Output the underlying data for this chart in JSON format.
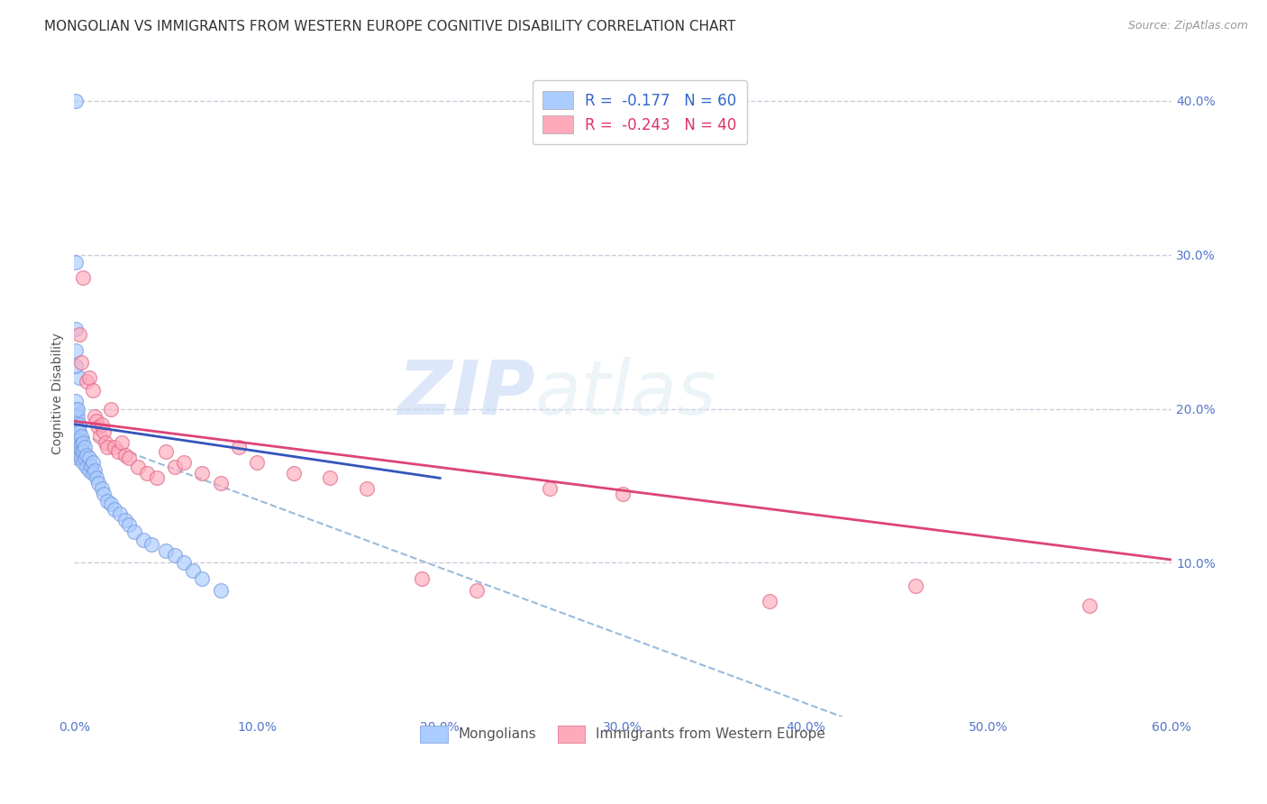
{
  "title": "MONGOLIAN VS IMMIGRANTS FROM WESTERN EUROPE COGNITIVE DISABILITY CORRELATION CHART",
  "source": "Source: ZipAtlas.com",
  "ylabel": "Cognitive Disability",
  "xlim": [
    0.0,
    0.6
  ],
  "ylim": [
    0.0,
    0.42
  ],
  "x_ticks": [
    0.0,
    0.1,
    0.2,
    0.3,
    0.4,
    0.5,
    0.6
  ],
  "x_tick_labels": [
    "0.0%",
    "10.0%",
    "20.0%",
    "30.0%",
    "40.0%",
    "50.0%",
    "60.0%"
  ],
  "y_ticks": [
    0.1,
    0.2,
    0.3,
    0.4
  ],
  "y_tick_labels": [
    "10.0%",
    "20.0%",
    "30.0%",
    "40.0%"
  ],
  "watermark": "ZIPatlas",
  "legend_top": [
    {
      "label": "R =  -0.177   N = 60",
      "color": "#aaccff"
    },
    {
      "label": "R =  -0.243   N = 40",
      "color": "#ffaabb"
    }
  ],
  "legend_top_text_colors": [
    "#3366cc",
    "#dd3366"
  ],
  "mongolian_color": "#aaccff",
  "mongolian_edge_color": "#7799dd",
  "western_europe_color": "#ffaabb",
  "western_europe_edge_color": "#dd6688",
  "mongolian_line_color": "#3355bb",
  "western_europe_line_color": "#dd4477",
  "dashed_line_color": "#99bbdd",
  "mongolian_x": [
    0.001,
    0.001,
    0.001,
    0.001,
    0.001,
    0.001,
    0.001,
    0.001,
    0.002,
    0.002,
    0.002,
    0.002,
    0.002,
    0.002,
    0.003,
    0.003,
    0.003,
    0.003,
    0.003,
    0.004,
    0.004,
    0.004,
    0.004,
    0.005,
    0.005,
    0.005,
    0.006,
    0.006,
    0.007,
    0.007,
    0.008,
    0.008,
    0.009,
    0.01,
    0.01,
    0.011,
    0.012,
    0.013,
    0.015,
    0.016,
    0.018,
    0.02,
    0.022,
    0.025,
    0.028,
    0.03,
    0.033,
    0.038,
    0.042,
    0.05,
    0.055,
    0.06,
    0.065,
    0.07,
    0.08,
    0.001,
    0.001,
    0.001,
    0.001,
    0.001
  ],
  "mongolian_y": [
    0.195,
    0.2,
    0.205,
    0.19,
    0.185,
    0.18,
    0.175,
    0.17,
    0.195,
    0.2,
    0.185,
    0.178,
    0.172,
    0.168,
    0.19,
    0.185,
    0.18,
    0.175,
    0.22,
    0.182,
    0.177,
    0.172,
    0.168,
    0.178,
    0.172,
    0.165,
    0.175,
    0.168,
    0.17,
    0.162,
    0.168,
    0.16,
    0.163,
    0.165,
    0.158,
    0.16,
    0.155,
    0.152,
    0.148,
    0.145,
    0.14,
    0.138,
    0.135,
    0.132,
    0.128,
    0.125,
    0.12,
    0.115,
    0.112,
    0.108,
    0.105,
    0.1,
    0.095,
    0.09,
    0.082,
    0.295,
    0.252,
    0.238,
    0.228,
    0.4
  ],
  "western_europe_x": [
    0.003,
    0.004,
    0.005,
    0.007,
    0.008,
    0.01,
    0.011,
    0.012,
    0.013,
    0.014,
    0.015,
    0.016,
    0.017,
    0.018,
    0.02,
    0.022,
    0.024,
    0.026,
    0.028,
    0.03,
    0.035,
    0.04,
    0.045,
    0.05,
    0.055,
    0.06,
    0.07,
    0.08,
    0.09,
    0.1,
    0.12,
    0.14,
    0.16,
    0.19,
    0.22,
    0.26,
    0.3,
    0.38,
    0.46,
    0.555
  ],
  "western_europe_y": [
    0.248,
    0.23,
    0.285,
    0.218,
    0.22,
    0.212,
    0.195,
    0.192,
    0.188,
    0.182,
    0.19,
    0.185,
    0.178,
    0.175,
    0.2,
    0.175,
    0.172,
    0.178,
    0.17,
    0.168,
    0.162,
    0.158,
    0.155,
    0.172,
    0.162,
    0.165,
    0.158,
    0.152,
    0.175,
    0.165,
    0.158,
    0.155,
    0.148,
    0.09,
    0.082,
    0.148,
    0.145,
    0.075,
    0.085,
    0.072
  ],
  "mon_line_x": [
    0.0,
    0.2
  ],
  "mon_line_y": [
    0.19,
    0.155
  ],
  "weu_line_x": [
    0.0,
    0.6
  ],
  "weu_line_y": [
    0.192,
    0.102
  ],
  "dash_line_x": [
    0.0,
    0.42
  ],
  "dash_line_y": [
    0.185,
    0.0
  ],
  "background_color": "#ffffff",
  "grid_color": "#ccccdd",
  "title_fontsize": 11,
  "axis_label_fontsize": 10,
  "tick_label_color": "#5577cc",
  "tick_label_fontsize": 10
}
